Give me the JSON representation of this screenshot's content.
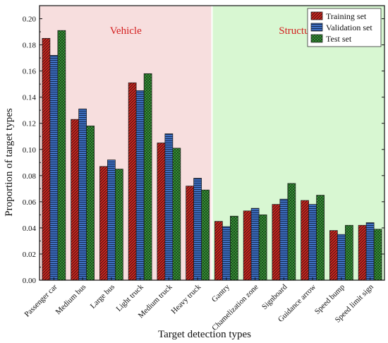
{
  "chart_data": {
    "type": "bar",
    "title": "",
    "xlabel": "Target detection types",
    "ylabel": "Proportion of target types",
    "ylim": [
      0,
      0.21
    ],
    "yticks": [
      "0.00",
      "0.02",
      "0.04",
      "0.06",
      "0.08",
      "0.10",
      "0.12",
      "0.14",
      "0.16",
      "0.18",
      "0.20"
    ],
    "categories": [
      "Passenger car",
      "Medium bus",
      "Large bus",
      "Light truck",
      "Medium truck",
      "Heavy truck",
      "Gantry",
      "Chamelization zone",
      "Signboard",
      "Guidance arrow",
      "Speed bump",
      "Speed limit sign"
    ],
    "series": [
      {
        "name": "Training set",
        "color": "#cc2a24",
        "hatch": "diagonal",
        "values": [
          0.185,
          0.123,
          0.087,
          0.151,
          0.105,
          0.072,
          0.045,
          0.053,
          0.058,
          0.061,
          0.038,
          0.042
        ]
      },
      {
        "name": "Validation set",
        "color": "#3f6fc0",
        "hatch": "horizontal",
        "values": [
          0.172,
          0.131,
          0.092,
          0.145,
          0.112,
          0.078,
          0.041,
          0.055,
          0.062,
          0.058,
          0.035,
          0.044
        ]
      },
      {
        "name": "Test set",
        "color": "#3e9a3e",
        "hatch": "crosshatch",
        "values": [
          0.191,
          0.118,
          0.085,
          0.158,
          0.101,
          0.069,
          0.049,
          0.05,
          0.074,
          0.065,
          0.042,
          0.039
        ]
      }
    ],
    "regions": [
      {
        "label": "Vehicle",
        "start_category": 0,
        "end_category": 5,
        "color": "#f7dede"
      },
      {
        "label": "Structure",
        "start_category": 6,
        "end_category": 11,
        "color": "#d8f7d2"
      }
    ],
    "legend_position": "top-right",
    "grid": false
  }
}
